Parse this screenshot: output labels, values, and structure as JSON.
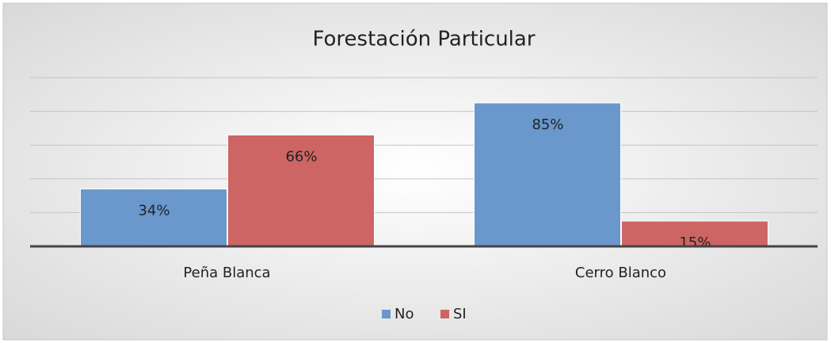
{
  "chart_data": {
    "type": "bar",
    "title": "Forestación Particular",
    "categories": [
      "Peña Blanca",
      "Cerro Blanco"
    ],
    "series": [
      {
        "name": "No",
        "color": "#6a97cc",
        "values": [
          34,
          85
        ],
        "value_labels": [
          "34%",
          "85%"
        ]
      },
      {
        "name": "SI",
        "color": "#cd6564",
        "values": [
          66,
          15
        ],
        "value_labels": [
          "66%",
          "15%"
        ]
      }
    ],
    "ylim": [
      0,
      100
    ],
    "yticks": [
      0,
      20,
      40,
      60,
      80,
      100
    ],
    "grid": true,
    "legend": "bottom"
  }
}
